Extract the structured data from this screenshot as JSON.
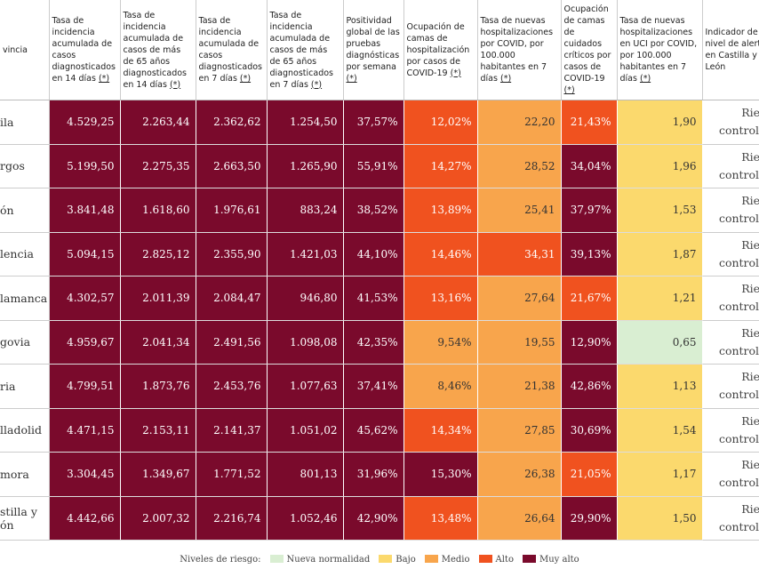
{
  "table": {
    "header": [
      {
        "text": "vincia"
      },
      {
        "text": "Tasa de incidencia acumulada de casos diagnosticados en 14 días",
        "note": "(*)"
      },
      {
        "text": "Tasa de incidencia acumulada de casos de más de 65 años diagnosticados en 14 días",
        "note": "(*)"
      },
      {
        "text": "Tasa de incidencia acumulada de casos diagnosticados en 7 días",
        "note": "(*)"
      },
      {
        "text": "Tasa de incidencia acumulada de casos de más de 65 años diagnosticados en 7 días",
        "note": "(*)"
      },
      {
        "text": "Positividad global de las pruebas diagnósticas por semana",
        "note": "(*)"
      },
      {
        "text": "Ocupación de camas de hospitalización por casos de COVID-19",
        "note": "(*)"
      },
      {
        "text": "Tasa de nuevas hospitalizaciones por COVID, por 100.000 habitantes en 7 días",
        "note": "(*)"
      },
      {
        "text": "Ocupación de camas de cuidados críticos por casos de COVID-19",
        "note": "(*)"
      },
      {
        "text": "Tasa de nuevas hospitalizaciones en UCI por COVID, por 100.000 habitantes en 7 días",
        "note": "(*)"
      },
      {
        "text": "Indicador de nivel de alerta en Castilla y León"
      }
    ],
    "rows": [
      {
        "name": "ila",
        "alert": [
          "Riesg",
          "controlad"
        ],
        "cells": [
          {
            "text": "4.529,25",
            "color": "#7a0a2c"
          },
          {
            "text": "2.263,44",
            "color": "#7a0a2c"
          },
          {
            "text": "2.362,62",
            "color": "#7a0a2c"
          },
          {
            "text": "1.254,50",
            "color": "#7a0a2c"
          },
          {
            "text": "37,57%",
            "color": "#7a0a2c"
          },
          {
            "text": "12,02%",
            "color": "#f0521f"
          },
          {
            "text": "22,20",
            "color": "#f8a54c"
          },
          {
            "text": "21,43%",
            "color": "#f0521f"
          },
          {
            "text": "1,90",
            "color": "#fbd96d"
          }
        ]
      },
      {
        "name": "rgos",
        "alert": [
          "Riesg",
          "controlad"
        ],
        "cells": [
          {
            "text": "5.199,50",
            "color": "#7a0a2c"
          },
          {
            "text": "2.275,35",
            "color": "#7a0a2c"
          },
          {
            "text": "2.663,50",
            "color": "#7a0a2c"
          },
          {
            "text": "1.265,90",
            "color": "#7a0a2c"
          },
          {
            "text": "55,91%",
            "color": "#7a0a2c"
          },
          {
            "text": "14,27%",
            "color": "#f0521f"
          },
          {
            "text": "28,52",
            "color": "#f8a54c"
          },
          {
            "text": "34,04%",
            "color": "#7a0a2c"
          },
          {
            "text": "1,96",
            "color": "#fbd96d"
          }
        ]
      },
      {
        "name": "ón",
        "alert": [
          "Riesg",
          "controlad"
        ],
        "cells": [
          {
            "text": "3.841,48",
            "color": "#7a0a2c"
          },
          {
            "text": "1.618,60",
            "color": "#7a0a2c"
          },
          {
            "text": "1.976,61",
            "color": "#7a0a2c"
          },
          {
            "text": "883,24",
            "color": "#7a0a2c"
          },
          {
            "text": "38,52%",
            "color": "#7a0a2c"
          },
          {
            "text": "13,89%",
            "color": "#f0521f"
          },
          {
            "text": "25,41",
            "color": "#f8a54c"
          },
          {
            "text": "37,97%",
            "color": "#7a0a2c"
          },
          {
            "text": "1,53",
            "color": "#fbd96d"
          }
        ]
      },
      {
        "name": "lencia",
        "alert": [
          "Riesg",
          "controlad"
        ],
        "cells": [
          {
            "text": "5.094,15",
            "color": "#7a0a2c"
          },
          {
            "text": "2.825,12",
            "color": "#7a0a2c"
          },
          {
            "text": "2.355,90",
            "color": "#7a0a2c"
          },
          {
            "text": "1.421,03",
            "color": "#7a0a2c"
          },
          {
            "text": "44,10%",
            "color": "#7a0a2c"
          },
          {
            "text": "14,46%",
            "color": "#f0521f"
          },
          {
            "text": "34,31",
            "color": "#f0521f"
          },
          {
            "text": "39,13%",
            "color": "#7a0a2c"
          },
          {
            "text": "1,87",
            "color": "#fbd96d"
          }
        ]
      },
      {
        "name": "lamanca",
        "alert": [
          "Riesg",
          "controlad"
        ],
        "cells": [
          {
            "text": "4.302,57",
            "color": "#7a0a2c"
          },
          {
            "text": "2.011,39",
            "color": "#7a0a2c"
          },
          {
            "text": "2.084,47",
            "color": "#7a0a2c"
          },
          {
            "text": "946,80",
            "color": "#7a0a2c"
          },
          {
            "text": "41,53%",
            "color": "#7a0a2c"
          },
          {
            "text": "13,16%",
            "color": "#f0521f"
          },
          {
            "text": "27,64",
            "color": "#f8a54c"
          },
          {
            "text": "21,67%",
            "color": "#f0521f"
          },
          {
            "text": "1,21",
            "color": "#fbd96d"
          }
        ]
      },
      {
        "name": "govia",
        "alert": [
          "Riesg",
          "controlad"
        ],
        "cells": [
          {
            "text": "4.959,67",
            "color": "#7a0a2c"
          },
          {
            "text": "2.041,34",
            "color": "#7a0a2c"
          },
          {
            "text": "2.491,56",
            "color": "#7a0a2c"
          },
          {
            "text": "1.098,08",
            "color": "#7a0a2c"
          },
          {
            "text": "42,35%",
            "color": "#7a0a2c"
          },
          {
            "text": "9,54%",
            "color": "#f8a54c"
          },
          {
            "text": "19,55",
            "color": "#f8a54c"
          },
          {
            "text": "12,90%",
            "color": "#7a0a2c"
          },
          {
            "text": "0,65",
            "color": "#d9eed2"
          }
        ]
      },
      {
        "name": "ria",
        "alert": [
          "Riesg",
          "controlad"
        ],
        "cells": [
          {
            "text": "4.799,51",
            "color": "#7a0a2c"
          },
          {
            "text": "1.873,76",
            "color": "#7a0a2c"
          },
          {
            "text": "2.453,76",
            "color": "#7a0a2c"
          },
          {
            "text": "1.077,63",
            "color": "#7a0a2c"
          },
          {
            "text": "37,41%",
            "color": "#7a0a2c"
          },
          {
            "text": "8,46%",
            "color": "#f8a54c"
          },
          {
            "text": "21,38",
            "color": "#f8a54c"
          },
          {
            "text": "42,86%",
            "color": "#7a0a2c"
          },
          {
            "text": "1,13",
            "color": "#fbd96d"
          }
        ]
      },
      {
        "name": "lladolid",
        "alert": [
          "Riesg",
          "controlad"
        ],
        "cells": [
          {
            "text": "4.471,15",
            "color": "#7a0a2c"
          },
          {
            "text": "2.153,11",
            "color": "#7a0a2c"
          },
          {
            "text": "2.141,37",
            "color": "#7a0a2c"
          },
          {
            "text": "1.051,02",
            "color": "#7a0a2c"
          },
          {
            "text": "45,62%",
            "color": "#7a0a2c"
          },
          {
            "text": "14,34%",
            "color": "#f0521f"
          },
          {
            "text": "27,85",
            "color": "#f8a54c"
          },
          {
            "text": "30,69%",
            "color": "#7a0a2c"
          },
          {
            "text": "1,54",
            "color": "#fbd96d"
          }
        ]
      },
      {
        "name": "mora",
        "alert": [
          "Riesg",
          "controlad"
        ],
        "cells": [
          {
            "text": "3.304,45",
            "color": "#7a0a2c"
          },
          {
            "text": "1.349,67",
            "color": "#7a0a2c"
          },
          {
            "text": "1.771,52",
            "color": "#7a0a2c"
          },
          {
            "text": "801,13",
            "color": "#7a0a2c"
          },
          {
            "text": "31,96%",
            "color": "#7a0a2c"
          },
          {
            "text": "15,30%",
            "color": "#7a0a2c"
          },
          {
            "text": "26,38",
            "color": "#f8a54c"
          },
          {
            "text": "21,05%",
            "color": "#f0521f"
          },
          {
            "text": "1,17",
            "color": "#fbd96d"
          }
        ]
      },
      {
        "name": "stilla y ón",
        "alert": [
          "Riesg",
          "controlad"
        ],
        "cells": [
          {
            "text": "4.442,66",
            "color": "#7a0a2c"
          },
          {
            "text": "2.007,32",
            "color": "#7a0a2c"
          },
          {
            "text": "2.216,74",
            "color": "#7a0a2c"
          },
          {
            "text": "1.052,46",
            "color": "#7a0a2c"
          },
          {
            "text": "42,90%",
            "color": "#7a0a2c"
          },
          {
            "text": "13,48%",
            "color": "#f0521f"
          },
          {
            "text": "26,64",
            "color": "#f8a54c"
          },
          {
            "text": "29,90%",
            "color": "#7a0a2c"
          },
          {
            "text": "1,50",
            "color": "#fbd96d"
          }
        ]
      }
    ]
  },
  "legend": {
    "title": "Niveles de riesgo:",
    "items": [
      {
        "label": "Nueva normalidad",
        "color": "#d9eed2"
      },
      {
        "label": "Bajo",
        "color": "#fbd96d"
      },
      {
        "label": "Medio",
        "color": "#f8a54c"
      },
      {
        "label": "Alto",
        "color": "#f0521f"
      },
      {
        "label": "Muy alto",
        "color": "#7a0a2c"
      }
    ]
  }
}
